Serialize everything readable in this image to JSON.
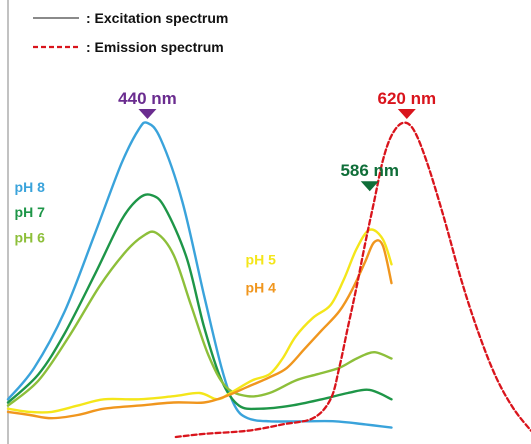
{
  "chart_data": {
    "type": "line",
    "title": "",
    "xlabel": "",
    "ylabel": "",
    "legend": {
      "placement": "top-left",
      "entries": [
        {
          "label": ": Excitation spectrum",
          "style": "solid",
          "color": "#8a8a8a"
        },
        {
          "label": ": Emission spectrum",
          "style": "dashed",
          "color": "#d9141c"
        }
      ]
    },
    "peak_labels": [
      {
        "text": "440 nm",
        "color": "#6a2c8f",
        "x": 0.32,
        "y": 1.0
      },
      {
        "text": "620 nm",
        "color": "#d9141c",
        "x": 0.915,
        "y": 1.0
      },
      {
        "text": "586 nm",
        "color": "#0f6e38",
        "x": 0.83,
        "y": 0.77
      }
    ],
    "series_labels": [
      {
        "text": "pH 8",
        "color": "#3aa3db",
        "anchor_x": 0.015,
        "anchor_y": 0.78
      },
      {
        "text": "pH 7",
        "color": "#1e9648",
        "anchor_x": 0.015,
        "anchor_y": 0.7
      },
      {
        "text": "pH 6",
        "color": "#8dbf3a",
        "anchor_x": 0.015,
        "anchor_y": 0.62
      },
      {
        "text": "pH 5",
        "color": "#f4e61a",
        "anchor_x": 0.545,
        "anchor_y": 0.55
      },
      {
        "text": "pH 4",
        "color": "#f0961e",
        "anchor_x": 0.545,
        "anchor_y": 0.46
      }
    ],
    "axis_x_range": [
      0,
      1.2
    ],
    "axis_y_range": [
      0,
      1.0
    ],
    "grid": false,
    "series": [
      {
        "kind": "excitation",
        "color": "#3aa3db",
        "points": [
          [
            0,
            0.12
          ],
          [
            0.06,
            0.22
          ],
          [
            0.13,
            0.4
          ],
          [
            0.2,
            0.65
          ],
          [
            0.26,
            0.87
          ],
          [
            0.3,
            0.98
          ],
          [
            0.32,
            1.0
          ],
          [
            0.35,
            0.95
          ],
          [
            0.4,
            0.75
          ],
          [
            0.45,
            0.45
          ],
          [
            0.49,
            0.22
          ],
          [
            0.52,
            0.1
          ],
          [
            0.55,
            0.06
          ],
          [
            0.6,
            0.05
          ],
          [
            0.68,
            0.05
          ],
          [
            0.75,
            0.05
          ],
          [
            0.82,
            0.04
          ],
          [
            0.88,
            0.03
          ]
        ]
      },
      {
        "kind": "excitation",
        "color": "#1e9648",
        "points": [
          [
            0,
            0.11
          ],
          [
            0.07,
            0.2
          ],
          [
            0.13,
            0.33
          ],
          [
            0.2,
            0.52
          ],
          [
            0.26,
            0.69
          ],
          [
            0.3,
            0.76
          ],
          [
            0.33,
            0.77
          ],
          [
            0.36,
            0.73
          ],
          [
            0.41,
            0.57
          ],
          [
            0.45,
            0.35
          ],
          [
            0.49,
            0.18
          ],
          [
            0.53,
            0.1
          ],
          [
            0.58,
            0.09
          ],
          [
            0.65,
            0.1
          ],
          [
            0.72,
            0.12
          ],
          [
            0.78,
            0.14
          ],
          [
            0.83,
            0.15
          ],
          [
            0.88,
            0.12
          ]
        ]
      },
      {
        "kind": "excitation",
        "color": "#8dbf3a",
        "points": [
          [
            0,
            0.1
          ],
          [
            0.07,
            0.18
          ],
          [
            0.14,
            0.32
          ],
          [
            0.21,
            0.48
          ],
          [
            0.27,
            0.59
          ],
          [
            0.31,
            0.64
          ],
          [
            0.34,
            0.65
          ],
          [
            0.38,
            0.58
          ],
          [
            0.42,
            0.42
          ],
          [
            0.46,
            0.26
          ],
          [
            0.5,
            0.16
          ],
          [
            0.55,
            0.13
          ],
          [
            0.6,
            0.14
          ],
          [
            0.66,
            0.18
          ],
          [
            0.71,
            0.2
          ],
          [
            0.76,
            0.22
          ],
          [
            0.8,
            0.25
          ],
          [
            0.84,
            0.27
          ],
          [
            0.88,
            0.25
          ]
        ]
      },
      {
        "kind": "excitation",
        "color": "#f4e61a",
        "points": [
          [
            0,
            0.09
          ],
          [
            0.05,
            0.08
          ],
          [
            0.1,
            0.08
          ],
          [
            0.16,
            0.1
          ],
          [
            0.22,
            0.12
          ],
          [
            0.3,
            0.12
          ],
          [
            0.38,
            0.13
          ],
          [
            0.44,
            0.14
          ],
          [
            0.48,
            0.12
          ],
          [
            0.51,
            0.14
          ],
          [
            0.56,
            0.18
          ],
          [
            0.6,
            0.2
          ],
          [
            0.63,
            0.25
          ],
          [
            0.66,
            0.32
          ],
          [
            0.7,
            0.38
          ],
          [
            0.74,
            0.42
          ],
          [
            0.77,
            0.5
          ],
          [
            0.8,
            0.6
          ],
          [
            0.83,
            0.66
          ],
          [
            0.86,
            0.63
          ],
          [
            0.88,
            0.55
          ]
        ]
      },
      {
        "kind": "excitation",
        "color": "#f0961e",
        "points": [
          [
            0,
            0.08
          ],
          [
            0.05,
            0.07
          ],
          [
            0.1,
            0.06
          ],
          [
            0.16,
            0.07
          ],
          [
            0.22,
            0.09
          ],
          [
            0.3,
            0.1
          ],
          [
            0.38,
            0.11
          ],
          [
            0.45,
            0.11
          ],
          [
            0.5,
            0.13
          ],
          [
            0.55,
            0.16
          ],
          [
            0.6,
            0.19
          ],
          [
            0.64,
            0.22
          ],
          [
            0.68,
            0.28
          ],
          [
            0.72,
            0.34
          ],
          [
            0.76,
            0.4
          ],
          [
            0.79,
            0.47
          ],
          [
            0.82,
            0.56
          ],
          [
            0.84,
            0.62
          ],
          [
            0.86,
            0.61
          ],
          [
            0.88,
            0.49
          ]
        ]
      },
      {
        "kind": "emission",
        "color": "#d9141c",
        "points": [
          [
            0.385,
            0.0
          ],
          [
            0.45,
            0.01
          ],
          [
            0.55,
            0.02
          ],
          [
            0.63,
            0.04
          ],
          [
            0.7,
            0.06
          ],
          [
            0.74,
            0.12
          ],
          [
            0.76,
            0.22
          ],
          [
            0.78,
            0.35
          ],
          [
            0.8,
            0.48
          ],
          [
            0.82,
            0.62
          ],
          [
            0.84,
            0.75
          ],
          [
            0.86,
            0.88
          ],
          [
            0.88,
            0.96
          ],
          [
            0.905,
            1.0
          ],
          [
            0.93,
            0.98
          ],
          [
            0.96,
            0.88
          ],
          [
            1.0,
            0.7
          ],
          [
            1.04,
            0.5
          ],
          [
            1.08,
            0.33
          ],
          [
            1.12,
            0.19
          ],
          [
            1.16,
            0.09
          ],
          [
            1.2,
            0.02
          ]
        ]
      }
    ]
  }
}
